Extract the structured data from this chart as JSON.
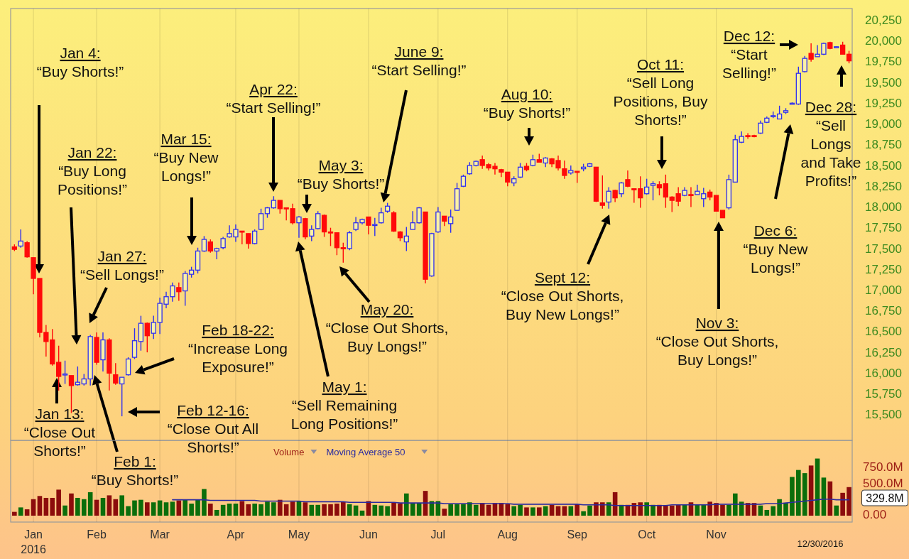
{
  "chart_data": [
    {
      "type": "candlestick",
      "categories": [
        null,
        null,
        null,
        null,
        null,
        null,
        null,
        null,
        null,
        null,
        null,
        null,
        null,
        null,
        null,
        null,
        null,
        null,
        null,
        null,
        null,
        null,
        null,
        null,
        null,
        null,
        null,
        null,
        null,
        null,
        null,
        null,
        null,
        null,
        null,
        null,
        null,
        null,
        null,
        null,
        null,
        null,
        null,
        null,
        null,
        null,
        null,
        null,
        null,
        null,
        null,
        null,
        null,
        null,
        null,
        null,
        null,
        null,
        null,
        null,
        null,
        null,
        null,
        null,
        null,
        null,
        null,
        null,
        null,
        null,
        null,
        null,
        null,
        null,
        null,
        null,
        null,
        null,
        null,
        null,
        null,
        null,
        null,
        null,
        null,
        null,
        null,
        null,
        null,
        null,
        null,
        null,
        null,
        null,
        null,
        null,
        null,
        null,
        null,
        null,
        null,
        null,
        null,
        null,
        null,
        null,
        null,
        null,
        null,
        null,
        null,
        null,
        null,
        null,
        null,
        null,
        null,
        null,
        null,
        null,
        null,
        null,
        null,
        null,
        null,
        null,
        null,
        null,
        null,
        null,
        null,
        null,
        null
      ],
      "ohlc": [
        [
          17530,
          17560,
          17480,
          17500
        ],
        [
          17540,
          17740,
          17520,
          17600
        ],
        [
          17580,
          17600,
          17400,
          17410
        ],
        [
          17400,
          17400,
          16960,
          17150
        ],
        [
          17150,
          17150,
          16440,
          16500
        ],
        [
          16500,
          16590,
          16210,
          16390
        ],
        [
          16410,
          16540,
          16100,
          16120
        ],
        [
          16140,
          16340,
          15800,
          15970
        ],
        [
          15990,
          16160,
          15880,
          16000
        ],
        [
          15980,
          15980,
          15530,
          15860
        ],
        [
          15870,
          16090,
          15860,
          15900
        ],
        [
          15880,
          16000,
          15860,
          15940
        ],
        [
          15940,
          16470,
          15860,
          16450
        ],
        [
          16440,
          16500,
          16110,
          16140
        ],
        [
          16170,
          16500,
          16030,
          16410
        ],
        [
          16410,
          16430,
          15800,
          16010
        ],
        [
          15990,
          16130,
          15870,
          15890
        ],
        [
          15880,
          15960,
          15490,
          15960
        ],
        [
          15990,
          16200,
          15980,
          16180
        ],
        [
          16200,
          16550,
          16180,
          16400
        ],
        [
          16390,
          16700,
          16280,
          16610
        ],
        [
          16610,
          16620,
          16260,
          16460
        ],
        [
          16490,
          16700,
          16420,
          16620
        ],
        [
          16620,
          16920,
          16480,
          16850
        ],
        [
          16840,
          16990,
          16790,
          16930
        ],
        [
          16930,
          17100,
          16870,
          17060
        ],
        [
          17040,
          17100,
          16880,
          16990
        ],
        [
          17000,
          17240,
          16820,
          17210
        ],
        [
          17200,
          17290,
          17160,
          17250
        ],
        [
          17250,
          17520,
          17210,
          17480
        ],
        [
          17480,
          17660,
          17470,
          17620
        ],
        [
          17590,
          17620,
          17460,
          17480
        ],
        [
          17480,
          17520,
          17380,
          17510
        ],
        [
          17520,
          17650,
          17500,
          17630
        ],
        [
          17650,
          17790,
          17640,
          17690
        ],
        [
          17650,
          17800,
          17590,
          17740
        ],
        [
          17720,
          17720,
          17560,
          17710
        ],
        [
          17690,
          17690,
          17510,
          17570
        ],
        [
          17570,
          17740,
          17560,
          17720
        ],
        [
          17740,
          17990,
          17730,
          17930
        ],
        [
          17930,
          18010,
          17880,
          18000
        ],
        [
          18000,
          18140,
          17990,
          18090
        ],
        [
          18090,
          18090,
          17930,
          17990
        ],
        [
          18000,
          18000,
          17850,
          17990
        ],
        [
          17990,
          18050,
          17800,
          17820
        ],
        [
          17820,
          17900,
          17640,
          17890
        ],
        [
          17870,
          17880,
          17620,
          17650
        ],
        [
          17660,
          17790,
          17600,
          17740
        ],
        [
          17750,
          17960,
          17740,
          17930
        ],
        [
          17910,
          17920,
          17650,
          17710
        ],
        [
          17710,
          17760,
          17540,
          17700
        ],
        [
          17700,
          17700,
          17430,
          17520
        ],
        [
          17520,
          17580,
          17340,
          17510
        ],
        [
          17510,
          17720,
          17490,
          17700
        ],
        [
          17740,
          17890,
          17720,
          17820
        ],
        [
          17820,
          17870,
          17800,
          17860
        ],
        [
          17890,
          17890,
          17680,
          17790
        ],
        [
          17790,
          17880,
          17660,
          17800
        ],
        [
          17820,
          18000,
          17810,
          17940
        ],
        [
          17960,
          18060,
          17940,
          18020
        ],
        [
          17940,
          17960,
          17710,
          17720
        ],
        [
          17710,
          17720,
          17600,
          17640
        ],
        [
          17590,
          17770,
          17480,
          17660
        ],
        [
          17740,
          17960,
          17740,
          17820
        ],
        [
          17820,
          18010,
          17810,
          18000
        ],
        [
          17950,
          17950,
          17090,
          17140
        ],
        [
          17180,
          17700,
          17170,
          17690
        ],
        [
          17710,
          18010,
          17700,
          17950
        ],
        [
          17900,
          17900,
          17780,
          17840
        ],
        [
          17810,
          17980,
          17700,
          17890
        ],
        [
          17970,
          18300,
          17970,
          18230
        ],
        [
          18260,
          18400,
          18250,
          18380
        ],
        [
          18410,
          18550,
          18400,
          18510
        ],
        [
          18510,
          18570,
          18500,
          18560
        ],
        [
          18580,
          18630,
          18470,
          18510
        ],
        [
          18520,
          18540,
          18450,
          18480
        ],
        [
          18500,
          18540,
          18400,
          18470
        ],
        [
          18460,
          18470,
          18370,
          18430
        ],
        [
          18430,
          18430,
          18260,
          18310
        ],
        [
          18300,
          18380,
          18260,
          18350
        ],
        [
          18370,
          18540,
          18360,
          18490
        ],
        [
          18500,
          18540,
          18440,
          18460
        ],
        [
          18510,
          18640,
          18500,
          18580
        ],
        [
          18580,
          18650,
          18550,
          18550
        ],
        [
          18540,
          18610,
          18490,
          18600
        ],
        [
          18590,
          18600,
          18490,
          18530
        ],
        [
          18570,
          18630,
          18450,
          18480
        ],
        [
          18470,
          18570,
          18350,
          18390
        ],
        [
          18420,
          18510,
          18400,
          18450
        ],
        [
          18440,
          18440,
          18300,
          18430
        ],
        [
          18470,
          18530,
          18440,
          18490
        ],
        [
          18500,
          18540,
          18490,
          18530
        ],
        [
          18490,
          18490,
          18070,
          18080
        ],
        [
          18060,
          18390,
          17990,
          18030
        ],
        [
          18070,
          18250,
          17990,
          18200
        ],
        [
          18210,
          18220,
          18070,
          18120
        ],
        [
          18170,
          18310,
          18130,
          18300
        ],
        [
          18340,
          18450,
          18250,
          18260
        ],
        [
          18230,
          18230,
          18060,
          18220
        ],
        [
          18230,
          18380,
          18000,
          18120
        ],
        [
          18170,
          18350,
          18160,
          18250
        ],
        [
          18270,
          18320,
          18090,
          18290
        ],
        [
          18280,
          18320,
          18150,
          18240
        ],
        [
          18290,
          18400,
          18000,
          18130
        ],
        [
          18130,
          18140,
          17950,
          18090
        ],
        [
          18170,
          18250,
          18020,
          18080
        ],
        [
          18150,
          18250,
          18140,
          18210
        ],
        [
          18160,
          18250,
          18010,
          18150
        ],
        [
          18160,
          18280,
          18160,
          18200
        ],
        [
          18110,
          18240,
          18010,
          18170
        ],
        [
          18190,
          18220,
          18090,
          18130
        ],
        [
          18150,
          18150,
          17960,
          17960
        ],
        [
          17970,
          17970,
          17880,
          17880
        ],
        [
          18000,
          18400,
          17980,
          18340
        ],
        [
          18310,
          18880,
          18310,
          18820
        ],
        [
          18790,
          18920,
          18780,
          18860
        ],
        [
          18870,
          18900,
          18830,
          18860
        ],
        [
          18870,
          18880,
          18850,
          18860
        ],
        [
          18900,
          19050,
          18890,
          19020
        ],
        [
          19030,
          19100,
          19020,
          19080
        ],
        [
          19100,
          19160,
          19080,
          19110
        ],
        [
          19070,
          19230,
          19070,
          19130
        ],
        [
          19150,
          19200,
          19130,
          19170
        ],
        [
          19250,
          19270,
          19250,
          19260
        ],
        [
          19250,
          19700,
          19240,
          19620
        ],
        [
          19640,
          19830,
          19630,
          19800
        ],
        [
          19860,
          19980,
          19760,
          19790
        ],
        [
          19820,
          19960,
          19820,
          19850
        ],
        [
          19850,
          19990,
          19840,
          19980
        ],
        [
          19990,
          20000,
          19910,
          19920
        ],
        [
          19930,
          19940,
          19930,
          19940
        ],
        [
          19960,
          20000,
          19850,
          19850
        ],
        [
          19850,
          19890,
          19740,
          19770
        ]
      ],
      "ylim": [
        15200,
        20400
      ],
      "yticks": [
        {
          "value": 15500,
          "label": "15,500"
        },
        {
          "value": 15750,
          "label": "15,750"
        },
        {
          "value": 16000,
          "label": "16,000"
        },
        {
          "value": 16250,
          "label": "16,250"
        },
        {
          "value": 16500,
          "label": "16,500"
        },
        {
          "value": 16750,
          "label": "16,750"
        },
        {
          "value": 17000,
          "label": "17,000"
        },
        {
          "value": 17250,
          "label": "17,250"
        },
        {
          "value": 17500,
          "label": "17,500"
        },
        {
          "value": 17750,
          "label": "17,750"
        },
        {
          "value": 18000,
          "label": "18,000"
        },
        {
          "value": 18250,
          "label": "18,250"
        },
        {
          "value": 18500,
          "label": "18,500"
        },
        {
          "value": 18750,
          "label": "18,750"
        },
        {
          "value": 19000,
          "label": "19,000"
        },
        {
          "value": 19250,
          "label": "19,250"
        },
        {
          "value": 19500,
          "label": "19,500"
        },
        {
          "value": 19750,
          "label": "19,750"
        },
        {
          "value": 20000,
          "label": "20,000"
        },
        {
          "value": 20250,
          "label": "20,250"
        }
      ],
      "grid": "x",
      "annotations": [
        "Jan 4:\n“Buy Shorts!”",
        "Jan 22:\n“Buy Long\nPositions!”",
        "Jan 27:\n“Sell Longs!”",
        "Jan 13:\n“Close Out\nShorts!”",
        "Feb 1:\n“Buy Shorts!”",
        "Feb 12-16:\n“Close Out All\nShorts!”",
        "Feb 18-22:\n“Increase Long\nExposure!”",
        "Mar 15:\n“Buy New\nLongs!”",
        "Apr 22:\n“Start Selling!”",
        "May 3:\n“Buy Shorts!”",
        "May 1:\n“Sell Remaining\nLong Positions!”",
        "May 20:\n“Close Out Shorts,\nBuy Longs!”",
        "June 9:\n“Start Selling!”",
        "Aug 10:\n“Buy Shorts!”",
        "Sept 12:\n“Close Out Shorts,\nBuy New Longs!”",
        "Oct 11:\n“Sell Long\nPositions, Buy\nShorts!”",
        "Nov 3:\n“Close Out Shorts,\nBuy Longs!”",
        "Dec 12:\n“Start\nSelling!”",
        "Dec 6:\n“Buy New\nLongs!”",
        "Dec 28:\n“Sell\nLongs\nand Take\nProfits!”"
      ]
    },
    {
      "type": "bar",
      "categories": [
        null,
        null,
        null,
        "Jan\n2016",
        null,
        null,
        null,
        null,
        null,
        null,
        null,
        null,
        null,
        "Feb",
        null,
        null,
        null,
        null,
        null,
        null,
        null,
        null,
        null,
        "Mar",
        null,
        null,
        null,
        null,
        null,
        null,
        null,
        null,
        null,
        null,
        null,
        "Apr",
        null,
        null,
        null,
        null,
        null,
        null,
        null,
        null,
        null,
        "May",
        null,
        null,
        null,
        null,
        null,
        null,
        null,
        null,
        null,
        null,
        "Jun",
        null,
        null,
        null,
        null,
        null,
        null,
        null,
        null,
        null,
        null,
        "Jul",
        null,
        null,
        null,
        null,
        null,
        null,
        null,
        null,
        null,
        null,
        "Aug",
        null,
        null,
        null,
        null,
        null,
        null,
        null,
        null,
        null,
        null,
        "Sep",
        null,
        null,
        null,
        null,
        null,
        null,
        null,
        null,
        null,
        null,
        "Oct",
        null,
        null,
        null,
        null,
        null,
        null,
        null,
        null,
        null,
        null,
        "Nov",
        null,
        null,
        null,
        null,
        null,
        null,
        null,
        null,
        null,
        null,
        null,
        null,
        null,
        null,
        null,
        null,
        null,
        null,
        null,
        null,
        null
      ],
      "series": [
        {
          "name": "Volume",
          "type": "bar",
          "color": "#9b1c14",
          "values": [
            60,
            130,
            100,
            260,
            310,
            280,
            280,
            410,
            160,
            350,
            280,
            260,
            370,
            250,
            280,
            320,
            260,
            320,
            150,
            240,
            250,
            210,
            210,
            240,
            210,
            220,
            240,
            250,
            190,
            250,
            420,
            190,
            90,
            170,
            190,
            190,
            230,
            180,
            190,
            180,
            220,
            210,
            250,
            180,
            220,
            230,
            210,
            170,
            170,
            180,
            180,
            190,
            220,
            180,
            160,
            80,
            230,
            170,
            160,
            150,
            210,
            190,
            350,
            190,
            190,
            390,
            230,
            230,
            110,
            180,
            180,
            180,
            210,
            170,
            200,
            170,
            200,
            200,
            180,
            150,
            170,
            130,
            130,
            130,
            150,
            170,
            150,
            150,
            150,
            180,
            70,
            160,
            210,
            210,
            210,
            370,
            170,
            170,
            200,
            210,
            210,
            170,
            170,
            160,
            160,
            170,
            180,
            210,
            180,
            180,
            220,
            200,
            170,
            170,
            350,
            220,
            200,
            200,
            160,
            90,
            150,
            260,
            200,
            610,
            720,
            670,
            790,
            900,
            600,
            540,
            160,
            360,
            450
          ],
          "colors": [
            "#8c0c0c",
            "#0b6e0b",
            "#8c0c0c",
            "#8c0c0c",
            "#8c0c0c",
            "#8c0c0c",
            "#8c0c0c",
            "#8c0c0c",
            "#0b6e0b",
            "#8c0c0c",
            "#0b6e0b",
            "#0b6e0b",
            "#0b6e0b",
            "#8c0c0c",
            "#0b6e0b",
            "#8c0c0c",
            "#8c0c0c",
            "#0b6e0b",
            "#0b6e0b",
            "#0b6e0b",
            "#0b6e0b",
            "#8c0c0c",
            "#0b6e0b",
            "#0b6e0b",
            "#0b6e0b",
            "#0b6e0b",
            "#8c0c0c",
            "#0b6e0b",
            "#0b6e0b",
            "#0b6e0b",
            "#0b6e0b",
            "#8c0c0c",
            "#0b6e0b",
            "#0b6e0b",
            "#0b6e0b",
            "#0b6e0b",
            "#8c0c0c",
            "#8c0c0c",
            "#0b6e0b",
            "#0b6e0b",
            "#0b6e0b",
            "#0b6e0b",
            "#8c0c0c",
            "#8c0c0c",
            "#8c0c0c",
            "#0b6e0b",
            "#8c0c0c",
            "#0b6e0b",
            "#0b6e0b",
            "#8c0c0c",
            "#8c0c0c",
            "#8c0c0c",
            "#8c0c0c",
            "#0b6e0b",
            "#0b6e0b",
            "#0b6e0b",
            "#8c0c0c",
            "#0b6e0b",
            "#0b6e0b",
            "#0b6e0b",
            "#8c0c0c",
            "#8c0c0c",
            "#0b6e0b",
            "#0b6e0b",
            "#0b6e0b",
            "#8c0c0c",
            "#0b6e0b",
            "#0b6e0b",
            "#8c0c0c",
            "#0b6e0b",
            "#0b6e0b",
            "#0b6e0b",
            "#0b6e0b",
            "#0b6e0b",
            "#8c0c0c",
            "#8c0c0c",
            "#8c0c0c",
            "#8c0c0c",
            "#8c0c0c",
            "#0b6e0b",
            "#0b6e0b",
            "#8c0c0c",
            "#0b6e0b",
            "#8c0c0c",
            "#0b6e0b",
            "#8c0c0c",
            "#8c0c0c",
            "#8c0c0c",
            "#0b6e0b",
            "#8c0c0c",
            "#0b6e0b",
            "#0b6e0b",
            "#8c0c0c",
            "#8c0c0c",
            "#0b6e0b",
            "#8c0c0c",
            "#0b6e0b",
            "#8c0c0c",
            "#8c0c0c",
            "#8c0c0c",
            "#0b6e0b",
            "#0b6e0b",
            "#8c0c0c",
            "#8c0c0c",
            "#8c0c0c",
            "#8c0c0c",
            "#0b6e0b",
            "#8c0c0c",
            "#0b6e0b",
            "#0b6e0b",
            "#8c0c0c",
            "#8c0c0c",
            "#8c0c0c",
            "#0b6e0b",
            "#0b6e0b",
            "#0b6e0b",
            "#8c0c0c",
            "#8c0c0c",
            "#0b6e0b",
            "#0b6e0b",
            "#0b6e0b",
            "#0b6e0b",
            "#0b6e0b",
            "#0b6e0b",
            "#0b6e0b",
            "#0b6e0b",
            "#8c0c0c",
            "#0b6e0b",
            "#0b6e0b",
            "#8c0c0c",
            "#0b6e0b",
            "#8c0c0c",
            "#8c0c0c"
          ]
        },
        {
          "name": "Moving Average 50",
          "type": "line",
          "color": "#2b2ba0",
          "values": [
            null,
            null,
            null,
            null,
            null,
            null,
            null,
            null,
            null,
            null,
            null,
            null,
            null,
            null,
            null,
            null,
            null,
            null,
            null,
            null,
            null,
            null,
            null,
            null,
            null,
            250,
            250,
            250,
            250,
            250,
            250,
            240,
            240,
            240,
            240,
            240,
            240,
            240,
            240,
            230,
            230,
            230,
            230,
            230,
            230,
            230,
            220,
            220,
            220,
            220,
            220,
            220,
            220,
            210,
            210,
            210,
            210,
            210,
            210,
            210,
            210,
            200,
            200,
            200,
            200,
            200,
            200,
            200,
            190,
            190,
            190,
            190,
            190,
            190,
            190,
            190,
            190,
            190,
            190,
            180,
            180,
            180,
            180,
            180,
            180,
            180,
            180,
            180,
            180,
            180,
            170,
            170,
            170,
            170,
            170,
            160,
            160,
            160,
            160,
            160,
            160,
            160,
            160,
            160,
            170,
            170,
            170,
            170,
            170,
            170,
            170,
            180,
            180,
            180,
            180,
            180,
            180,
            180,
            180,
            190,
            190,
            190,
            200,
            210,
            220,
            230,
            240,
            250,
            260,
            260,
            250,
            250,
            250
          ]
        }
      ],
      "ylim": [
        0,
        1130
      ],
      "yticks": [
        {
          "value": 0,
          "label": "0.00"
        },
        {
          "value": 500,
          "label": "500.0M"
        },
        {
          "value": 750,
          "label": "750.0M"
        }
      ],
      "grid": "x",
      "legend": "top left",
      "annotations": [
        "329.8M",
        "12/30/2016"
      ]
    }
  ]
}
